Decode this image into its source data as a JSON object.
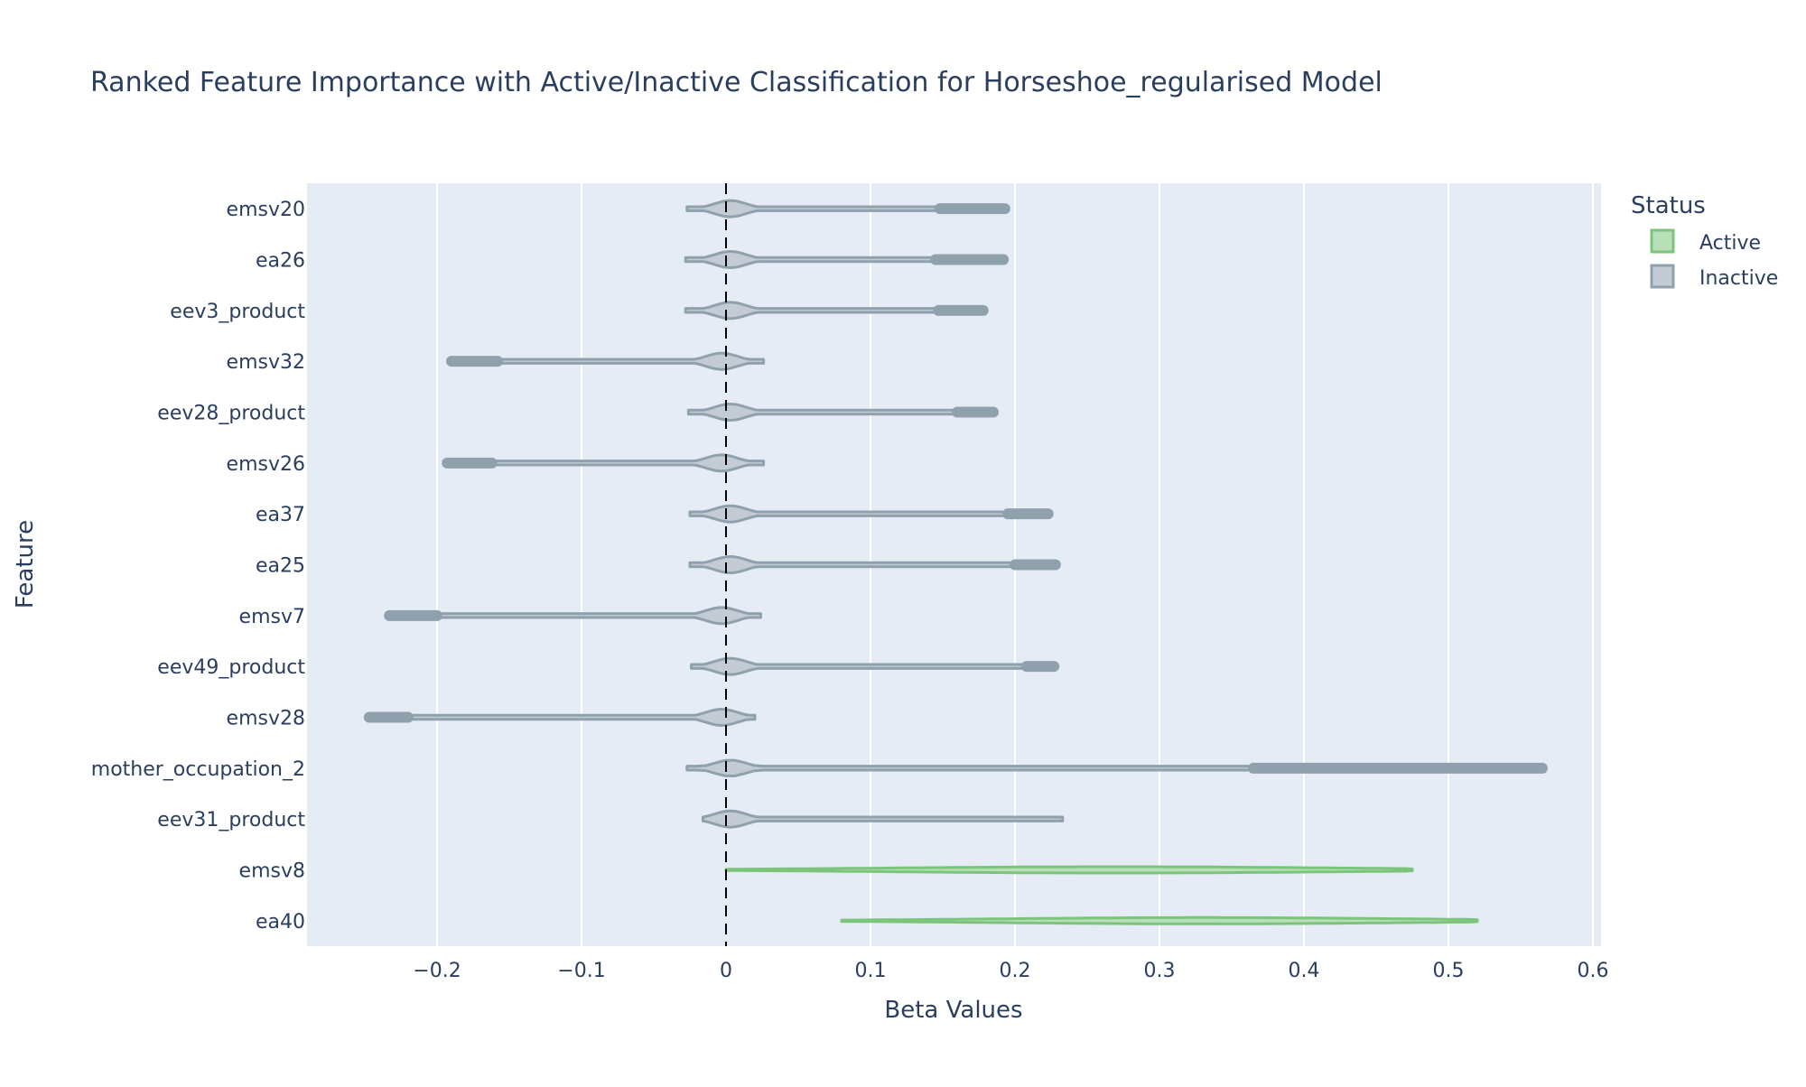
{
  "chart_data": {
    "type": "violin",
    "orientation": "horizontal",
    "title": "Ranked Feature Importance with Active/Inactive Classification for Horseshoe_regularised Model",
    "xlabel": "Beta Values",
    "ylabel": "Feature",
    "xlim": [
      -0.29,
      0.605
    ],
    "x_ticks": [
      -0.2,
      -0.1,
      0,
      0.1,
      0.2,
      0.3,
      0.4,
      0.5,
      0.6
    ],
    "x_tick_labels": [
      "−0.2",
      "−0.1",
      "0",
      "0.1",
      "0.2",
      "0.3",
      "0.4",
      "0.5",
      "0.6"
    ],
    "reference_line": {
      "x": 0,
      "style": "dashed",
      "color": "#000000"
    },
    "grid": true,
    "legend": {
      "title": "Status",
      "placement": "top-right",
      "entries": [
        {
          "name": "Active",
          "fill": "#b8e0b8",
          "stroke": "#7cc47c"
        },
        {
          "name": "Inactive",
          "fill": "#c3ccd4",
          "stroke": "#8fa1ad"
        }
      ]
    },
    "series": [
      {
        "feature": "emsv20",
        "status": "Inactive",
        "min": -0.027,
        "max": 0.193,
        "peak": 0.003,
        "outlier_start": 0.148
      },
      {
        "feature": "ea26",
        "status": "Inactive",
        "min": -0.028,
        "max": 0.192,
        "peak": 0.003,
        "outlier_start": 0.145
      },
      {
        "feature": "eev3_product",
        "status": "Inactive",
        "min": -0.028,
        "max": 0.178,
        "peak": 0.003,
        "outlier_start": 0.147
      },
      {
        "feature": "emsv32",
        "status": "Inactive",
        "min": -0.19,
        "max": 0.026,
        "peak": -0.003,
        "outlier_start": -0.158
      },
      {
        "feature": "eev28_product",
        "status": "Inactive",
        "min": -0.026,
        "max": 0.185,
        "peak": 0.003,
        "outlier_start": 0.16
      },
      {
        "feature": "emsv26",
        "status": "Inactive",
        "min": -0.193,
        "max": 0.026,
        "peak": -0.003,
        "outlier_start": -0.162
      },
      {
        "feature": "ea37",
        "status": "Inactive",
        "min": -0.025,
        "max": 0.223,
        "peak": 0.003,
        "outlier_start": 0.195
      },
      {
        "feature": "ea25",
        "status": "Inactive",
        "min": -0.025,
        "max": 0.228,
        "peak": 0.003,
        "outlier_start": 0.2
      },
      {
        "feature": "emsv7",
        "status": "Inactive",
        "min": -0.233,
        "max": 0.024,
        "peak": -0.003,
        "outlier_start": -0.2
      },
      {
        "feature": "eev49_product",
        "status": "Inactive",
        "min": -0.024,
        "max": 0.227,
        "peak": 0.003,
        "outlier_start": 0.208
      },
      {
        "feature": "emsv28",
        "status": "Inactive",
        "min": -0.247,
        "max": 0.02,
        "peak": -0.003,
        "outlier_start": -0.22
      },
      {
        "feature": "mother_occupation_2",
        "status": "Inactive",
        "min": -0.027,
        "max": 0.565,
        "peak": 0.003,
        "outlier_start": 0.365
      },
      {
        "feature": "eev31_product",
        "status": "Inactive",
        "min": -0.016,
        "max": 0.233,
        "peak": 0.003,
        "outlier_start": null
      },
      {
        "feature": "emsv8",
        "status": "Active",
        "min": 0.0,
        "max": 0.475,
        "peak": 0.27,
        "outlier_start": null
      },
      {
        "feature": "ea40",
        "status": "Active",
        "min": 0.08,
        "max": 0.52,
        "peak": 0.33,
        "outlier_start": null
      }
    ]
  }
}
